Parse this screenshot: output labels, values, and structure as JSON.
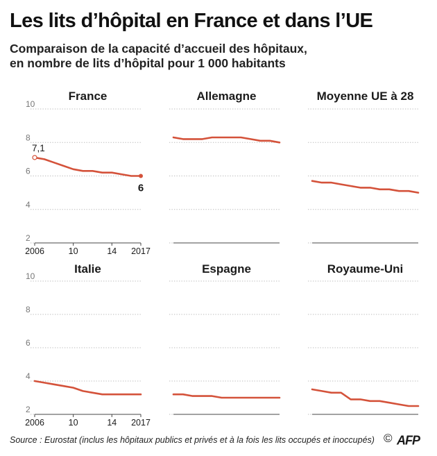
{
  "title": "Les lits d’hôpital en France et dans l’UE",
  "subtitle_line1": "Comparaison de la capacité d’accueil des hôpitaux,",
  "subtitle_line2": "en nombre de lits d’hôpital pour 1 000 habitants",
  "source": "Source : Eurostat (inclus les hôpitaux publics et privés et à la fois les lits occupés et inoccupés)",
  "copyright": "©",
  "logo_text": "AFP",
  "colors": {
    "line": "#d4523a",
    "grid": "#b9b9b9",
    "text": "#1a1a1a"
  },
  "chart_data": {
    "type": "line",
    "x": [
      2006,
      2007,
      2008,
      2009,
      2010,
      2011,
      2012,
      2013,
      2014,
      2015,
      2016,
      2017
    ],
    "ylim": [
      2,
      10
    ],
    "yticks": [
      "2",
      "4",
      "6",
      "8",
      "10"
    ],
    "xticks": [
      "2006",
      "10",
      "14",
      "2017"
    ],
    "panels": [
      {
        "name": "France",
        "values": [
          7.1,
          7.0,
          6.8,
          6.6,
          6.4,
          6.3,
          6.3,
          6.2,
          6.2,
          6.1,
          6.0,
          6.0
        ],
        "start_label": "7,1",
        "end_label": "6"
      },
      {
        "name": "Allemagne",
        "values": [
          8.3,
          8.2,
          8.2,
          8.2,
          8.3,
          8.3,
          8.3,
          8.3,
          8.2,
          8.1,
          8.1,
          8.0
        ]
      },
      {
        "name": "Moyenne UE à 28",
        "values": [
          5.7,
          5.6,
          5.6,
          5.5,
          5.4,
          5.3,
          5.3,
          5.2,
          5.2,
          5.1,
          5.1,
          5.0
        ]
      },
      {
        "name": "Italie",
        "values": [
          4.0,
          3.9,
          3.8,
          3.7,
          3.6,
          3.4,
          3.3,
          3.2,
          3.2,
          3.2,
          3.2,
          3.2
        ]
      },
      {
        "name": "Espagne",
        "values": [
          3.2,
          3.2,
          3.1,
          3.1,
          3.1,
          3.0,
          3.0,
          3.0,
          3.0,
          3.0,
          3.0,
          3.0
        ]
      },
      {
        "name": "Royaume-Uni",
        "values": [
          3.5,
          3.4,
          3.3,
          3.3,
          2.9,
          2.9,
          2.8,
          2.8,
          2.7,
          2.6,
          2.5,
          2.5
        ]
      }
    ]
  }
}
